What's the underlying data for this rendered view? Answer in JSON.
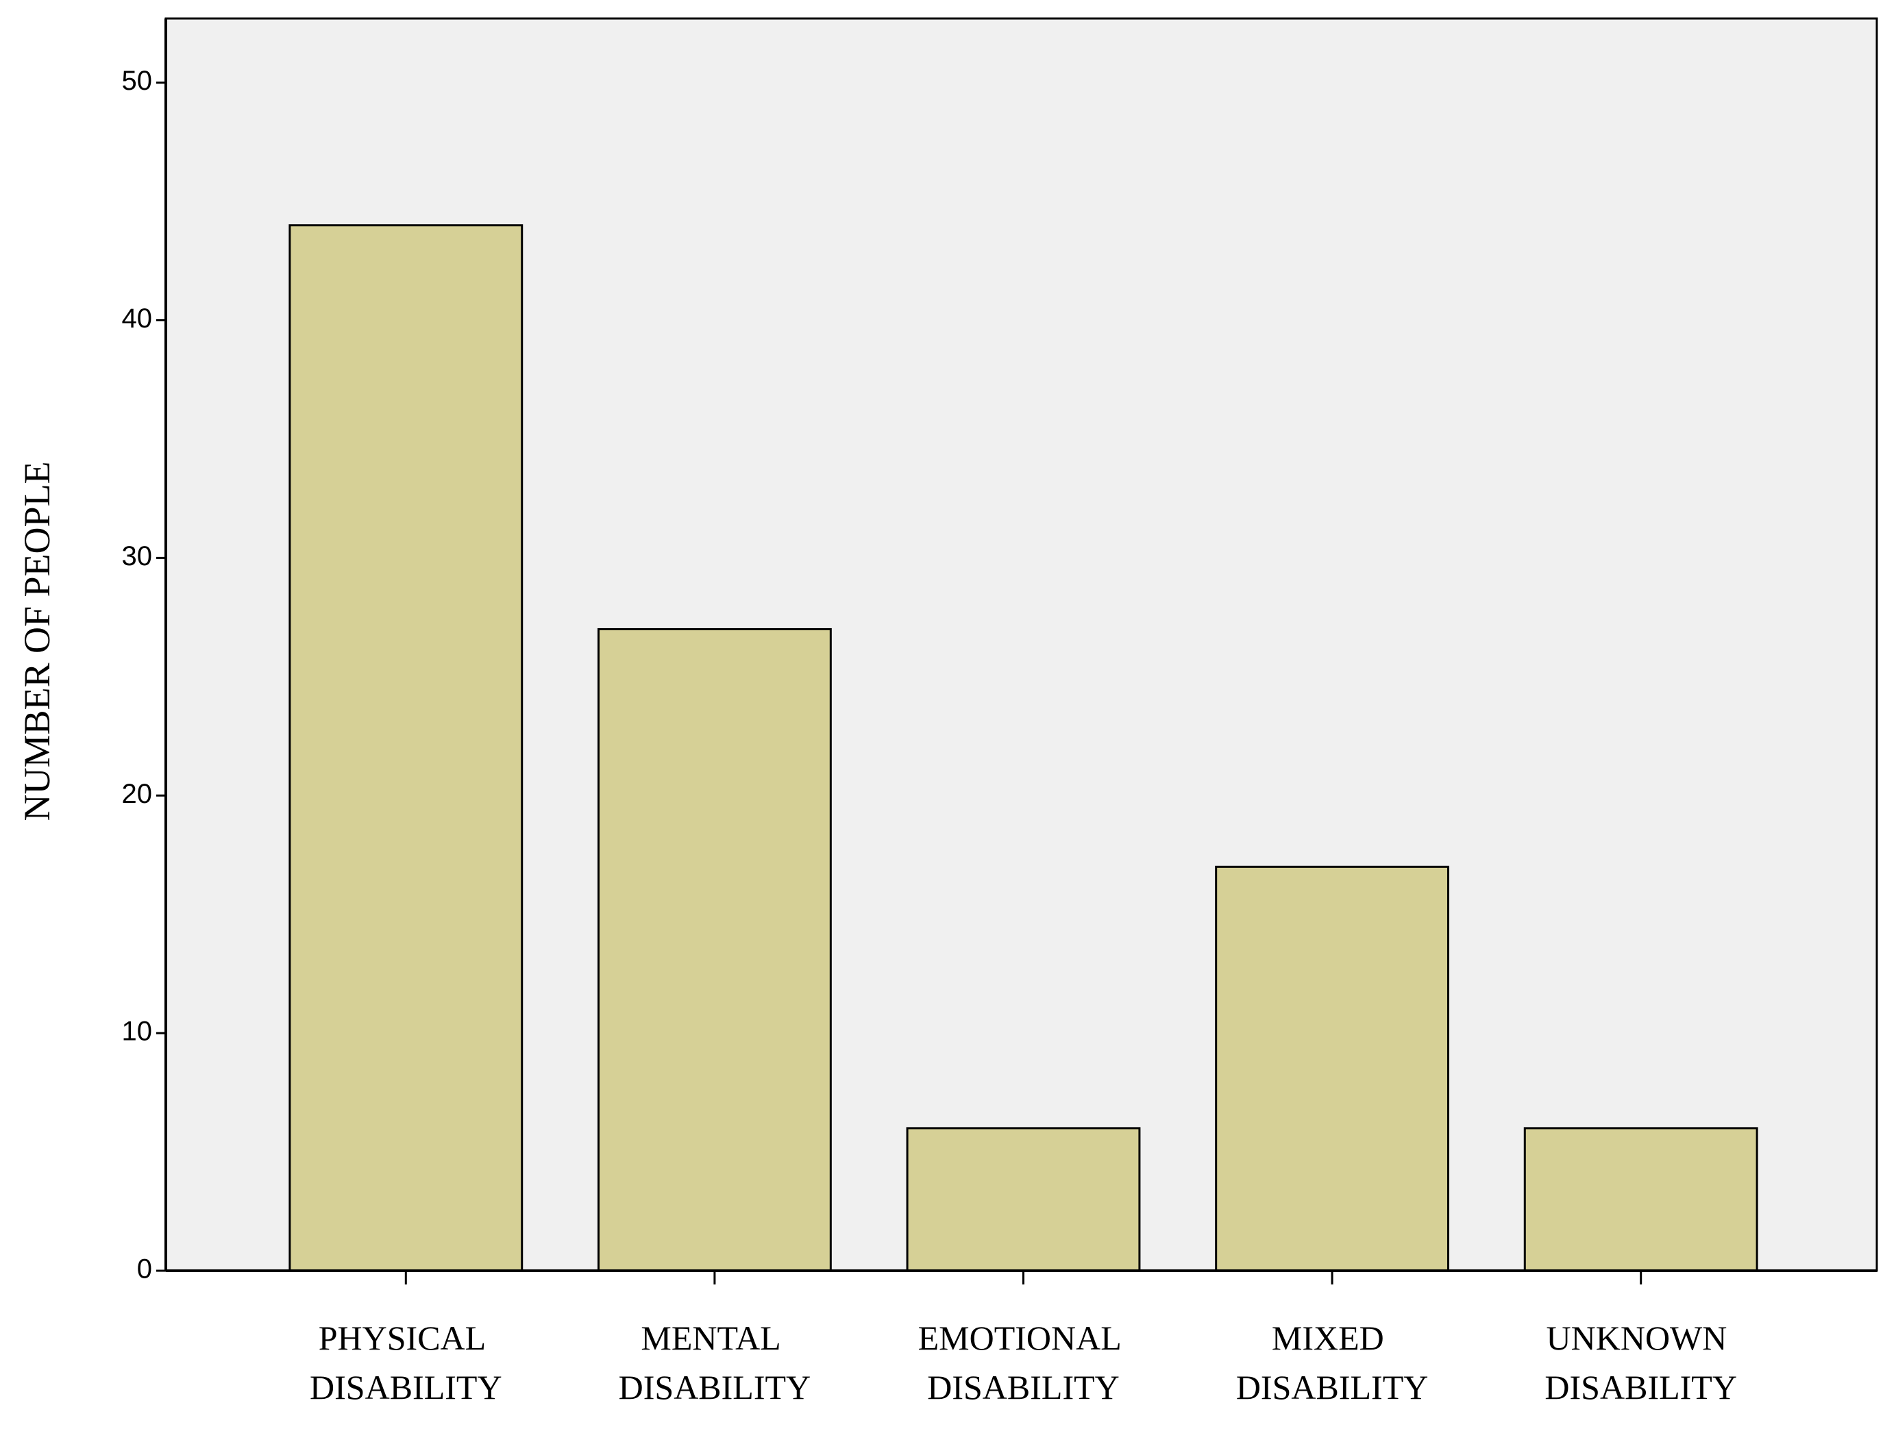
{
  "chart_data": {
    "type": "bar",
    "y_label": "NUMBER OF PEOPLE",
    "categories": [
      "PHYSICAL DISABILITY",
      "MENTAL DISABILITY",
      "EMOTIONAL DISABILITY",
      "MIXED DISABILITY",
      "UNKNOWN DISABILITY"
    ],
    "values": [
      44,
      27,
      6,
      17,
      6
    ],
    "color": "#d6d096",
    "ylim": [
      0,
      52.7
    ],
    "yticks": [
      0,
      10,
      20,
      30,
      40,
      50
    ],
    "grid": false
  }
}
